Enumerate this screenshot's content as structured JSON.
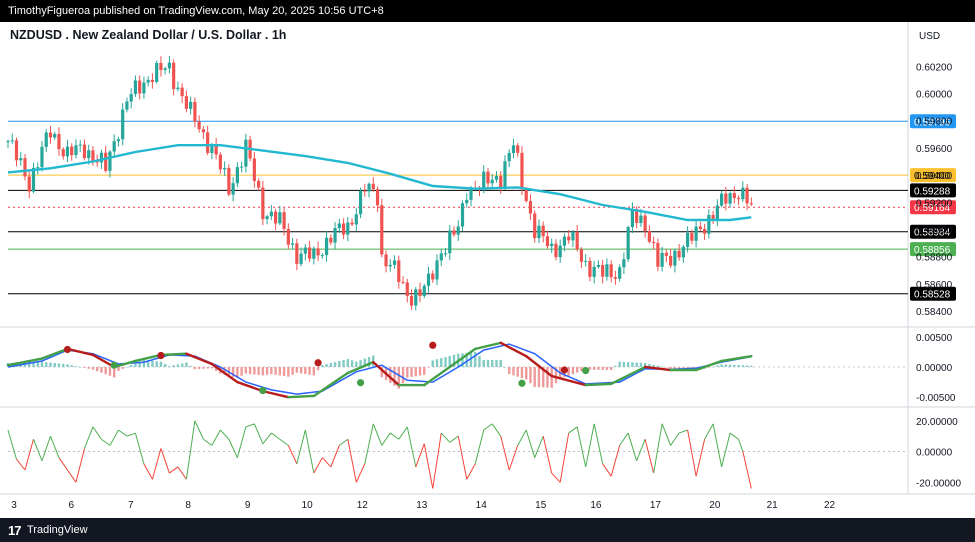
{
  "header": {
    "publisher_line": "TimothyFigueroa published on TradingView.com, May 20, 2025 10:56 UTC+8"
  },
  "footer": {
    "logo_glyph": "17",
    "brand": "TradingView"
  },
  "colors": {
    "candle_up": "#26a69a",
    "candle_down": "#ef5350",
    "ma_line": "#22b8cf",
    "level_blue": "#2196f3",
    "level_yellow": "#fbc02d",
    "level_green": "#4caf50",
    "level_black": "#000000",
    "price_tag_red": "#f23645",
    "osc_fast": "#2962ff",
    "osc_slow_up": "#43a047",
    "osc_slow_down": "#b71c1c",
    "rsi_up": "#4caf50",
    "rsi_down": "#f44336"
  },
  "chart_data": [
    {
      "type": "candlestick",
      "title": "NZDUSD . New Zealand Dollar / U.S. Dollar . 1h",
      "currency_label": "USD",
      "ylim": [
        0.5832,
        0.6032
      ],
      "y_ticks": [
        "0.60200",
        "0.60000",
        "0.59800",
        "0.59600",
        "0.59400",
        "0.59200",
        "0.59000",
        "0.58800",
        "0.58600",
        "0.58400"
      ],
      "x_ticks": [
        "3",
        "6",
        "7",
        "8",
        "9",
        "10",
        "12",
        "13",
        "14",
        "15",
        "16",
        "17",
        "20",
        "21",
        "22"
      ],
      "price_path": [
        {
          "x": 0,
          "y": 0.5965
        },
        {
          "x": 5,
          "y": 0.5935
        },
        {
          "x": 10,
          "y": 0.5972
        },
        {
          "x": 14,
          "y": 0.5955
        },
        {
          "x": 18,
          "y": 0.596
        },
        {
          "x": 23,
          "y": 0.5945
        },
        {
          "x": 28,
          "y": 0.5995
        },
        {
          "x": 34,
          "y": 0.6015
        },
        {
          "x": 38,
          "y": 0.6018
        },
        {
          "x": 43,
          "y": 0.5985
        },
        {
          "x": 48,
          "y": 0.596
        },
        {
          "x": 52,
          "y": 0.593
        },
        {
          "x": 56,
          "y": 0.596
        },
        {
          "x": 60,
          "y": 0.5915
        },
        {
          "x": 64,
          "y": 0.5905
        },
        {
          "x": 68,
          "y": 0.5882
        },
        {
          "x": 72,
          "y": 0.588
        },
        {
          "x": 76,
          "y": 0.5895
        },
        {
          "x": 80,
          "y": 0.5902
        },
        {
          "x": 84,
          "y": 0.593
        },
        {
          "x": 87,
          "y": 0.5925
        },
        {
          "x": 88,
          "y": 0.588
        },
        {
          "x": 90,
          "y": 0.5875
        },
        {
          "x": 94,
          "y": 0.5852
        },
        {
          "x": 97,
          "y": 0.5853
        },
        {
          "x": 99,
          "y": 0.586
        },
        {
          "x": 102,
          "y": 0.5885
        },
        {
          "x": 106,
          "y": 0.59
        },
        {
          "x": 108,
          "y": 0.593
        },
        {
          "x": 111,
          "y": 0.5932
        },
        {
          "x": 116,
          "y": 0.594
        },
        {
          "x": 119,
          "y": 0.5962
        },
        {
          "x": 121,
          "y": 0.5935
        },
        {
          "x": 124,
          "y": 0.59
        },
        {
          "x": 128,
          "y": 0.5885
        },
        {
          "x": 132,
          "y": 0.5895
        },
        {
          "x": 136,
          "y": 0.5875
        },
        {
          "x": 140,
          "y": 0.5867
        },
        {
          "x": 144,
          "y": 0.587
        },
        {
          "x": 147,
          "y": 0.591
        },
        {
          "x": 150,
          "y": 0.5905
        },
        {
          "x": 153,
          "y": 0.5875
        },
        {
          "x": 156,
          "y": 0.588
        },
        {
          "x": 160,
          "y": 0.589
        },
        {
          "x": 163,
          "y": 0.5902
        },
        {
          "x": 166,
          "y": 0.591
        },
        {
          "x": 169,
          "y": 0.5924
        },
        {
          "x": 172,
          "y": 0.5928
        },
        {
          "x": 175,
          "y": 0.5916
        }
      ],
      "moving_average": [
        {
          "x": 0,
          "y": 0.5942
        },
        {
          "x": 10,
          "y": 0.5945
        },
        {
          "x": 20,
          "y": 0.595
        },
        {
          "x": 30,
          "y": 0.5957
        },
        {
          "x": 40,
          "y": 0.5962
        },
        {
          "x": 50,
          "y": 0.5962
        },
        {
          "x": 60,
          "y": 0.5958
        },
        {
          "x": 70,
          "y": 0.5954
        },
        {
          "x": 80,
          "y": 0.5949
        },
        {
          "x": 90,
          "y": 0.5941
        },
        {
          "x": 100,
          "y": 0.5932
        },
        {
          "x": 110,
          "y": 0.593
        },
        {
          "x": 120,
          "y": 0.5931
        },
        {
          "x": 130,
          "y": 0.5926
        },
        {
          "x": 140,
          "y": 0.5918
        },
        {
          "x": 150,
          "y": 0.5913
        },
        {
          "x": 160,
          "y": 0.5907
        },
        {
          "x": 170,
          "y": 0.5907
        },
        {
          "x": 175,
          "y": 0.5909
        }
      ],
      "horizontal_levels": [
        {
          "price": "0.59796",
          "color": "#2196f3",
          "tag_text_color": "#ffffff",
          "tag_bg": "#2196f3"
        },
        {
          "price": "0.59400",
          "color": "#fbc02d",
          "tag_text_color": "#000000",
          "tag_bg": "#fbc02d"
        },
        {
          "price": "0.59288",
          "color": "#000000",
          "tag_text_color": "#ffffff",
          "tag_bg": "#000000"
        },
        {
          "price": "0.58984",
          "color": "#000000",
          "tag_text_color": "#ffffff",
          "tag_bg": "#000000"
        },
        {
          "price": "0.58856",
          "color": "#4caf50",
          "tag_text_color": "#ffffff",
          "tag_bg": "#4caf50"
        },
        {
          "price": "0.58528",
          "color": "#000000",
          "tag_text_color": "#ffffff",
          "tag_bg": "#000000"
        }
      ],
      "last_price": {
        "price": "0.59164",
        "tag_bg": "#f23645"
      }
    },
    {
      "type": "line",
      "panel": "oscillator",
      "ylim": [
        -0.0063,
        0.0058
      ],
      "y_ticks": [
        "0.00500",
        "0.00000",
        "-0.00500"
      ],
      "series": [
        {
          "values": [
            {
              "x": 0,
              "y": 0.0003
            },
            {
              "x": 8,
              "y": 0.0014
            },
            {
              "x": 14,
              "y": 0.003
            },
            {
              "x": 20,
              "y": 0.002
            },
            {
              "x": 25,
              "y": 0.0
            },
            {
              "x": 30,
              "y": 0.001
            },
            {
              "x": 36,
              "y": 0.002
            },
            {
              "x": 42,
              "y": 0.0022
            },
            {
              "x": 48,
              "y": 0.0005
            },
            {
              "x": 54,
              "y": -0.0025
            },
            {
              "x": 60,
              "y": -0.004
            },
            {
              "x": 66,
              "y": -0.005
            },
            {
              "x": 72,
              "y": -0.0048
            },
            {
              "x": 80,
              "y": -0.001
            },
            {
              "x": 86,
              "y": 0.0008
            },
            {
              "x": 92,
              "y": -0.003
            },
            {
              "x": 98,
              "y": -0.003
            },
            {
              "x": 104,
              "y": 0.0
            },
            {
              "x": 110,
              "y": 0.003
            },
            {
              "x": 116,
              "y": 0.004
            },
            {
              "x": 122,
              "y": 0.0018
            },
            {
              "x": 128,
              "y": -0.0015
            },
            {
              "x": 136,
              "y": -0.003
            },
            {
              "x": 142,
              "y": -0.0028
            },
            {
              "x": 150,
              "y": 0.0
            },
            {
              "x": 156,
              "y": -0.0005
            },
            {
              "x": 162,
              "y": -0.0005
            },
            {
              "x": 168,
              "y": 0.001
            },
            {
              "x": 175,
              "y": 0.0018
            }
          ]
        },
        {
          "values": [
            {
              "x": 0,
              "y": 0.0
            },
            {
              "x": 8,
              "y": 0.001
            },
            {
              "x": 14,
              "y": 0.0028
            },
            {
              "x": 20,
              "y": 0.0022
            },
            {
              "x": 26,
              "y": 0.0005
            },
            {
              "x": 32,
              "y": 0.0008
            },
            {
              "x": 38,
              "y": 0.002
            },
            {
              "x": 44,
              "y": 0.0018
            },
            {
              "x": 50,
              "y": 0.0
            },
            {
              "x": 56,
              "y": -0.0025
            },
            {
              "x": 62,
              "y": -0.0038
            },
            {
              "x": 68,
              "y": -0.0045
            },
            {
              "x": 74,
              "y": -0.004
            },
            {
              "x": 82,
              "y": -0.0008
            },
            {
              "x": 88,
              "y": 0.0003
            },
            {
              "x": 94,
              "y": -0.0022
            },
            {
              "x": 100,
              "y": -0.0025
            },
            {
              "x": 106,
              "y": 0.0
            },
            {
              "x": 112,
              "y": 0.0028
            },
            {
              "x": 118,
              "y": 0.0038
            },
            {
              "x": 124,
              "y": 0.0022
            },
            {
              "x": 130,
              "y": -0.001
            },
            {
              "x": 136,
              "y": -0.0028
            },
            {
              "x": 144,
              "y": -0.0025
            },
            {
              "x": 150,
              "y": -0.0003
            },
            {
              "x": 156,
              "y": -0.0004
            },
            {
              "x": 162,
              "y": -0.0002
            },
            {
              "x": 168,
              "y": 0.0008
            },
            {
              "x": 175,
              "y": 0.0017
            }
          ]
        }
      ],
      "cross_markers": [
        {
          "x": 14,
          "y": 0.0029,
          "color": "#b71c1c"
        },
        {
          "x": 25,
          "y": 0.0003,
          "color": "#43a047"
        },
        {
          "x": 36,
          "y": 0.0019,
          "color": "#b71c1c"
        },
        {
          "x": 60,
          "y": -0.0039,
          "color": "#43a047"
        },
        {
          "x": 73,
          "y": 0.0007,
          "color": "#b71c1c"
        },
        {
          "x": 83,
          "y": -0.0026,
          "color": "#43a047"
        },
        {
          "x": 100,
          "y": 0.0036,
          "color": "#b71c1c"
        },
        {
          "x": 121,
          "y": -0.0027,
          "color": "#43a047"
        },
        {
          "x": 131,
          "y": -0.0005,
          "color": "#b71c1c"
        },
        {
          "x": 136,
          "y": -0.0006,
          "color": "#43a047"
        }
      ]
    },
    {
      "type": "line",
      "panel": "momentum",
      "ylim": [
        -25,
        27
      ],
      "y_ticks": [
        "20.00000",
        "0.00000",
        "-20.00000"
      ],
      "values": [
        {
          "x": 0,
          "y": 14
        },
        {
          "x": 2,
          "y": -5
        },
        {
          "x": 4,
          "y": -12
        },
        {
          "x": 6,
          "y": 8
        },
        {
          "x": 8,
          "y": -6
        },
        {
          "x": 10,
          "y": 10
        },
        {
          "x": 12,
          "y": -4
        },
        {
          "x": 14,
          "y": -12
        },
        {
          "x": 16,
          "y": -20
        },
        {
          "x": 18,
          "y": 2
        },
        {
          "x": 20,
          "y": 16
        },
        {
          "x": 22,
          "y": 8
        },
        {
          "x": 24,
          "y": 4
        },
        {
          "x": 26,
          "y": 14
        },
        {
          "x": 28,
          "y": 10
        },
        {
          "x": 30,
          "y": 12
        },
        {
          "x": 32,
          "y": -8
        },
        {
          "x": 34,
          "y": -18
        },
        {
          "x": 36,
          "y": 2
        },
        {
          "x": 38,
          "y": -14
        },
        {
          "x": 40,
          "y": -10
        },
        {
          "x": 42,
          "y": -18
        },
        {
          "x": 44,
          "y": 20
        },
        {
          "x": 46,
          "y": 8
        },
        {
          "x": 48,
          "y": 4
        },
        {
          "x": 50,
          "y": 14
        },
        {
          "x": 52,
          "y": 8
        },
        {
          "x": 54,
          "y": -4
        },
        {
          "x": 56,
          "y": 16
        },
        {
          "x": 58,
          "y": 18
        },
        {
          "x": 60,
          "y": 5
        },
        {
          "x": 62,
          "y": 12
        },
        {
          "x": 64,
          "y": 8
        },
        {
          "x": 66,
          "y": 4
        },
        {
          "x": 68,
          "y": -8
        },
        {
          "x": 70,
          "y": 14
        },
        {
          "x": 72,
          "y": -14
        },
        {
          "x": 74,
          "y": -4
        },
        {
          "x": 76,
          "y": -10
        },
        {
          "x": 78,
          "y": 4
        },
        {
          "x": 80,
          "y": 8
        },
        {
          "x": 82,
          "y": -20
        },
        {
          "x": 84,
          "y": -8
        },
        {
          "x": 86,
          "y": 18
        },
        {
          "x": 88,
          "y": 4
        },
        {
          "x": 90,
          "y": 12
        },
        {
          "x": 92,
          "y": 8
        },
        {
          "x": 94,
          "y": 16
        },
        {
          "x": 96,
          "y": -10
        },
        {
          "x": 98,
          "y": 5
        },
        {
          "x": 100,
          "y": -24
        },
        {
          "x": 102,
          "y": 12
        },
        {
          "x": 104,
          "y": 6
        },
        {
          "x": 106,
          "y": 10
        },
        {
          "x": 108,
          "y": -18
        },
        {
          "x": 110,
          "y": -8
        },
        {
          "x": 112,
          "y": 14
        },
        {
          "x": 114,
          "y": 18
        },
        {
          "x": 116,
          "y": 10
        },
        {
          "x": 118,
          "y": -12
        },
        {
          "x": 120,
          "y": 4
        },
        {
          "x": 122,
          "y": 14
        },
        {
          "x": 124,
          "y": -4
        },
        {
          "x": 126,
          "y": 10
        },
        {
          "x": 128,
          "y": -14
        },
        {
          "x": 130,
          "y": -20
        },
        {
          "x": 132,
          "y": 12
        },
        {
          "x": 134,
          "y": 16
        },
        {
          "x": 136,
          "y": -10
        },
        {
          "x": 138,
          "y": 18
        },
        {
          "x": 140,
          "y": -8
        },
        {
          "x": 142,
          "y": -16
        },
        {
          "x": 144,
          "y": 4
        },
        {
          "x": 146,
          "y": 12
        },
        {
          "x": 148,
          "y": -6
        },
        {
          "x": 150,
          "y": 8
        },
        {
          "x": 152,
          "y": -14
        },
        {
          "x": 154,
          "y": 18
        },
        {
          "x": 156,
          "y": 4
        },
        {
          "x": 158,
          "y": 12
        },
        {
          "x": 160,
          "y": 14
        },
        {
          "x": 162,
          "y": -16
        },
        {
          "x": 164,
          "y": 8
        },
        {
          "x": 166,
          "y": 18
        },
        {
          "x": 168,
          "y": -10
        },
        {
          "x": 170,
          "y": 12
        },
        {
          "x": 172,
          "y": 8
        },
        {
          "x": 173,
          "y": 0
        },
        {
          "x": 175,
          "y": -24
        }
      ]
    }
  ]
}
